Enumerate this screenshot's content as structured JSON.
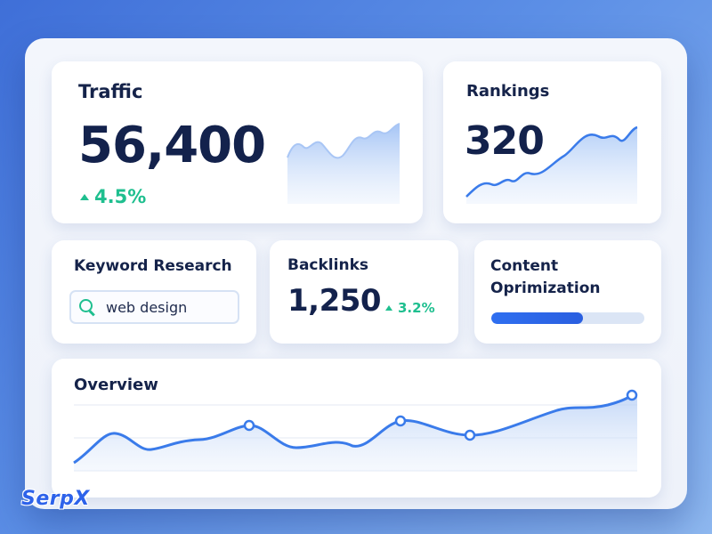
{
  "traffic": {
    "title": "Traffic",
    "value": "56,400",
    "delta": "4.5%"
  },
  "rankings": {
    "title": "Rankings",
    "value": "320"
  },
  "keyword": {
    "title": "Keyword Research",
    "search_value": "web design"
  },
  "backlinks": {
    "title": "Backlinks",
    "value": "1,250",
    "delta": "3.2%"
  },
  "content": {
    "title": "Content Oprimization",
    "progress": 0.6
  },
  "overview": {
    "title": "Overview"
  },
  "logo": {
    "text": "SerpX"
  },
  "colors": {
    "accent": "#3a7bea",
    "positive": "#1fbf8f",
    "text": "#15234a"
  },
  "icons": {
    "search": "search-icon",
    "delta_up": "arrow-up-icon"
  }
}
